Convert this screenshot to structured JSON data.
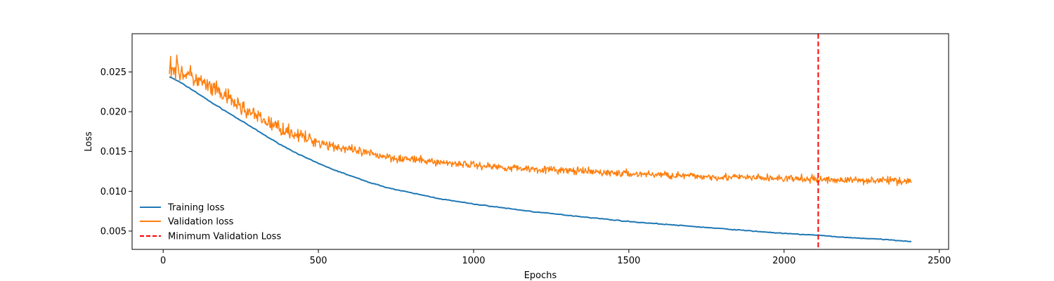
{
  "chart_data": {
    "type": "line",
    "xlabel": "Epochs",
    "ylabel": "Loss",
    "xlim": [
      -100,
      2530
    ],
    "ylim": [
      0.0027,
      0.0298
    ],
    "xticks": [
      0,
      500,
      1000,
      1500,
      2000,
      2500
    ],
    "yticks": [
      0.005,
      0.01,
      0.015,
      0.02,
      0.025
    ],
    "xtick_labels": [
      "0",
      "500",
      "1000",
      "1500",
      "2000",
      "2500"
    ],
    "ytick_labels": [
      "0.005",
      "0.010",
      "0.015",
      "0.020",
      "0.025"
    ],
    "grid": false,
    "legend": {
      "placement": "lower-left",
      "frame": false
    },
    "series": [
      {
        "name": "Training loss",
        "color": "#1f77b4",
        "style": "solid",
        "x": [
          20,
          50,
          100,
          150,
          200,
          250,
          300,
          350,
          400,
          450,
          500,
          550,
          600,
          650,
          700,
          750,
          800,
          850,
          900,
          950,
          1000,
          1100,
          1200,
          1300,
          1400,
          1500,
          1600,
          1700,
          1800,
          1900,
          2000,
          2100,
          2200,
          2300,
          2410
        ],
        "y": [
          0.0244,
          0.0238,
          0.0226,
          0.0213,
          0.0201,
          0.0189,
          0.0177,
          0.0165,
          0.0154,
          0.0144,
          0.0135,
          0.0127,
          0.012,
          0.0113,
          0.0107,
          0.0102,
          0.0098,
          0.0094,
          0.009,
          0.0087,
          0.0084,
          0.0079,
          0.0074,
          0.007,
          0.0066,
          0.0062,
          0.0059,
          0.0056,
          0.0053,
          0.005,
          0.0047,
          0.0045,
          0.0042,
          0.004,
          0.0037
        ]
      },
      {
        "name": "Validation loss",
        "color": "#ff7f0e",
        "style": "solid",
        "noisy": true,
        "x": [
          20,
          50,
          100,
          150,
          200,
          250,
          300,
          350,
          400,
          450,
          500,
          550,
          600,
          650,
          700,
          750,
          800,
          850,
          900,
          950,
          1000,
          1100,
          1200,
          1300,
          1400,
          1500,
          1600,
          1700,
          1800,
          1900,
          2000,
          2100,
          2200,
          2300,
          2410
        ],
        "y": [
          0.0258,
          0.0252,
          0.0242,
          0.023,
          0.0219,
          0.0206,
          0.0194,
          0.0184,
          0.0176,
          0.0168,
          0.0162,
          0.0157,
          0.0152,
          0.0148,
          0.0145,
          0.0142,
          0.014,
          0.0138,
          0.0136,
          0.0135,
          0.0133,
          0.013,
          0.0128,
          0.0126,
          0.0124,
          0.0122,
          0.0121,
          0.0119,
          0.0118,
          0.0117,
          0.0116,
          0.0115,
          0.0114,
          0.0114,
          0.0113
        ],
        "noise_amplitude": [
          0.0012,
          0.0012,
          0.0011,
          0.001,
          0.0009,
          0.0009,
          0.0008,
          0.0008,
          0.0007,
          0.0007,
          0.0006,
          0.0006,
          0.0005,
          0.0005,
          0.0005,
          0.0005,
          0.0004,
          0.0004,
          0.0004,
          0.0004,
          0.0004,
          0.0004,
          0.0004,
          0.0004,
          0.0004,
          0.0004,
          0.0004,
          0.0004,
          0.0004,
          0.0004,
          0.0004,
          0.0004,
          0.0004,
          0.0004,
          0.0004
        ]
      },
      {
        "name": "Minimum Validation Loss",
        "color": "#ff0000",
        "style": "dashed",
        "vertical_line_x": 2110
      }
    ]
  }
}
